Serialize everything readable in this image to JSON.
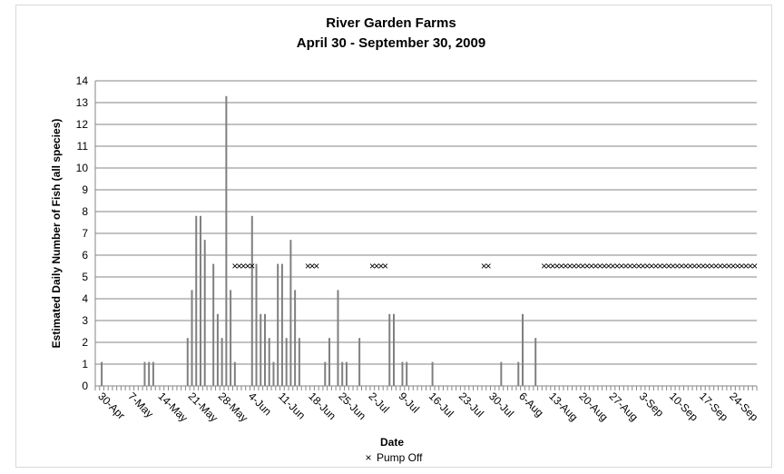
{
  "chart_data": {
    "type": "bar",
    "title": "River Garden Farms",
    "subtitle": "April 30 - September 30, 2009",
    "xlabel": "Date",
    "ylabel": "Estimated Daily Number  of Fish (all species)",
    "ylim": [
      0,
      14
    ],
    "yticks": [
      "0",
      "1",
      "2",
      "3",
      "4",
      "5",
      "6",
      "7",
      "8",
      "9",
      "10",
      "11",
      "12",
      "13",
      "14"
    ],
    "grid": true,
    "x_range": [
      "2009-04-30",
      "2009-09-30"
    ],
    "xtick_labels": [
      "30-Apr",
      "7-May",
      "14-May",
      "21-May",
      "28-May",
      "4-Jun",
      "11-Jun",
      "18-Jun",
      "25-Jun",
      "2-Jul",
      "9-Jul",
      "16-Jul",
      "23-Jul",
      "30-Jul",
      "6-Aug",
      "13-Aug",
      "20-Aug",
      "27-Aug",
      "3-Sep",
      "10-Sep",
      "17-Sep",
      "24-Sep"
    ],
    "colors": {
      "bar": "#7f7f7f",
      "grid": "#868686",
      "marker": "#000000"
    },
    "series": [
      {
        "type": "bar",
        "values": [
          {
            "x": "2009-05-01",
            "y": 1.1
          },
          {
            "x": "2009-05-11",
            "y": 1.1
          },
          {
            "x": "2009-05-12",
            "y": 1.1
          },
          {
            "x": "2009-05-13",
            "y": 1.1
          },
          {
            "x": "2009-05-21",
            "y": 2.2
          },
          {
            "x": "2009-05-22",
            "y": 4.4
          },
          {
            "x": "2009-05-23",
            "y": 7.8
          },
          {
            "x": "2009-05-24",
            "y": 7.8
          },
          {
            "x": "2009-05-25",
            "y": 6.7
          },
          {
            "x": "2009-05-27",
            "y": 5.6
          },
          {
            "x": "2009-05-28",
            "y": 3.3
          },
          {
            "x": "2009-05-29",
            "y": 2.2
          },
          {
            "x": "2009-05-30",
            "y": 13.3
          },
          {
            "x": "2009-05-31",
            "y": 4.4
          },
          {
            "x": "2009-06-01",
            "y": 1.1
          },
          {
            "x": "2009-06-05",
            "y": 7.8
          },
          {
            "x": "2009-06-06",
            "y": 5.6
          },
          {
            "x": "2009-06-07",
            "y": 3.3
          },
          {
            "x": "2009-06-08",
            "y": 3.3
          },
          {
            "x": "2009-06-09",
            "y": 2.2
          },
          {
            "x": "2009-06-10",
            "y": 1.1
          },
          {
            "x": "2009-06-11",
            "y": 5.6
          },
          {
            "x": "2009-06-12",
            "y": 5.6
          },
          {
            "x": "2009-06-13",
            "y": 2.2
          },
          {
            "x": "2009-06-14",
            "y": 6.7
          },
          {
            "x": "2009-06-15",
            "y": 4.4
          },
          {
            "x": "2009-06-16",
            "y": 2.2
          },
          {
            "x": "2009-06-22",
            "y": 1.1
          },
          {
            "x": "2009-06-23",
            "y": 2.2
          },
          {
            "x": "2009-06-25",
            "y": 4.4
          },
          {
            "x": "2009-06-26",
            "y": 1.1
          },
          {
            "x": "2009-06-27",
            "y": 1.1
          },
          {
            "x": "2009-06-30",
            "y": 2.2
          },
          {
            "x": "2009-07-07",
            "y": 3.3
          },
          {
            "x": "2009-07-08",
            "y": 3.3
          },
          {
            "x": "2009-07-10",
            "y": 1.1
          },
          {
            "x": "2009-07-11",
            "y": 1.1
          },
          {
            "x": "2009-07-17",
            "y": 1.1
          },
          {
            "x": "2009-08-02",
            "y": 1.1
          },
          {
            "x": "2009-08-06",
            "y": 1.1
          },
          {
            "x": "2009-08-07",
            "y": 3.3
          },
          {
            "x": "2009-08-10",
            "y": 2.2
          }
        ]
      },
      {
        "type": "scatter",
        "name": "Pump Off",
        "marker": "×",
        "y": 5.5,
        "x": [
          "2009-06-01",
          "2009-06-02",
          "2009-06-03",
          "2009-06-04",
          "2009-06-05",
          "2009-06-18",
          "2009-06-19",
          "2009-06-20",
          "2009-07-03",
          "2009-07-04",
          "2009-07-05",
          "2009-07-06",
          "2009-07-29",
          "2009-07-30",
          "2009-08-12",
          "2009-08-13",
          "2009-08-14",
          "2009-08-15",
          "2009-08-16",
          "2009-08-17",
          "2009-08-18",
          "2009-08-19",
          "2009-08-20",
          "2009-08-21",
          "2009-08-22",
          "2009-08-23",
          "2009-08-24",
          "2009-08-25",
          "2009-08-26",
          "2009-08-27",
          "2009-08-28",
          "2009-08-29",
          "2009-08-30",
          "2009-08-31",
          "2009-09-01",
          "2009-09-02",
          "2009-09-03",
          "2009-09-04",
          "2009-09-05",
          "2009-09-06",
          "2009-09-07",
          "2009-09-08",
          "2009-09-09",
          "2009-09-10",
          "2009-09-11",
          "2009-09-12",
          "2009-09-13",
          "2009-09-14",
          "2009-09-15",
          "2009-09-16",
          "2009-09-17",
          "2009-09-18",
          "2009-09-19",
          "2009-09-20",
          "2009-09-21",
          "2009-09-22",
          "2009-09-23",
          "2009-09-24",
          "2009-09-25",
          "2009-09-26",
          "2009-09-27",
          "2009-09-28",
          "2009-09-29",
          "2009-09-30"
        ]
      }
    ],
    "legend": {
      "position": "bottom",
      "label": "Pump Off",
      "marker": "×"
    }
  }
}
